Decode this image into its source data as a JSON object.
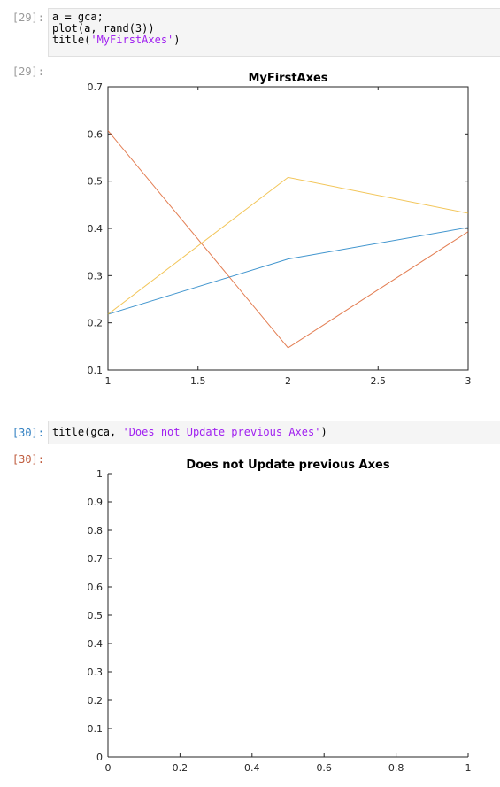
{
  "cells": [
    {
      "in_prompt": "[29]:",
      "out_prompt": "[29]:",
      "code_lines": [
        {
          "plain": "a = gca;",
          "str": "",
          "tail": ""
        },
        {
          "plain": "plot(a, rand(3))",
          "str": "",
          "tail": ""
        },
        {
          "plain": "title(",
          "str": "'MyFirstAxes'",
          "tail": ")"
        }
      ]
    },
    {
      "in_prompt": "[30]:",
      "out_prompt": "[30]:",
      "code_lines": [
        {
          "plain": "title(gca, ",
          "str": "'Does not Update previous Axes'",
          "tail": ")"
        }
      ]
    }
  ],
  "chart_data": [
    {
      "type": "line",
      "title": "MyFirstAxes",
      "xlabel": "",
      "ylabel": "",
      "xlim": [
        1,
        3
      ],
      "ylim": [
        0.1,
        0.7
      ],
      "x": [
        1,
        2,
        3
      ],
      "xticks": [
        "1",
        "1.5",
        "2",
        "2.5",
        "3"
      ],
      "yticks": [
        "0.1",
        "0.2",
        "0.3",
        "0.4",
        "0.5",
        "0.6",
        "0.7"
      ],
      "grid": false,
      "series": [
        {
          "values": [
            0.218,
            0.335,
            0.402
          ],
          "color": "#0072bd"
        },
        {
          "values": [
            0.607,
            0.147,
            0.393
          ],
          "color": "#d95319"
        },
        {
          "values": [
            0.218,
            0.508,
            0.432
          ],
          "color": "#edb120"
        }
      ]
    },
    {
      "type": "line",
      "title": "Does not Update previous Axes",
      "xlabel": "",
      "ylabel": "",
      "xlim": [
        0,
        1
      ],
      "ylim": [
        0,
        1
      ],
      "xticks": [
        "0",
        "0.2",
        "0.4",
        "0.6",
        "0.8",
        "1"
      ],
      "yticks": [
        "0",
        "0.1",
        "0.2",
        "0.3",
        "0.4",
        "0.5",
        "0.6",
        "0.7",
        "0.8",
        "0.9",
        "1"
      ],
      "grid": false,
      "series": []
    }
  ]
}
